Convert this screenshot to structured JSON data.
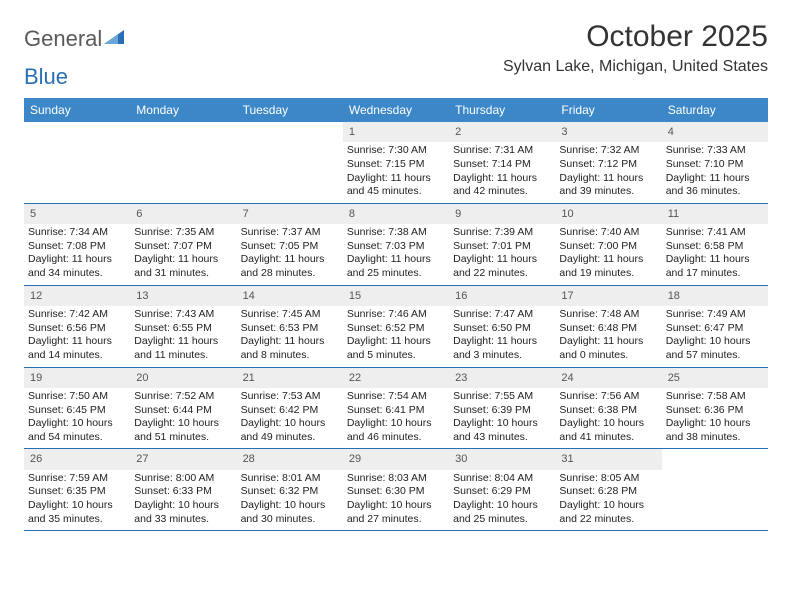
{
  "logo": {
    "general": "General",
    "blue": "Blue"
  },
  "title": "October 2025",
  "location": "Sylvan Lake, Michigan, United States",
  "weekdays": [
    "Sunday",
    "Monday",
    "Tuesday",
    "Wednesday",
    "Thursday",
    "Friday",
    "Saturday"
  ],
  "colors": {
    "header_bg": "#3b87c8",
    "header_text": "#ffffff",
    "row_border": "#2a6fb5",
    "daynum_bg": "#eeeeee",
    "body_text": "#222222",
    "logo_gray": "#5a5a5a",
    "logo_blue": "#2a6fb5"
  },
  "typography": {
    "title_fontsize": 30,
    "location_fontsize": 16,
    "weekday_fontsize": 12,
    "daynum_fontsize": 11,
    "body_fontsize": 10.5
  },
  "weeks": [
    [
      {
        "n": "",
        "sunrise": "",
        "sunset": "",
        "daylight1": "",
        "daylight2": "",
        "empty": true
      },
      {
        "n": "",
        "sunrise": "",
        "sunset": "",
        "daylight1": "",
        "daylight2": "",
        "empty": true
      },
      {
        "n": "",
        "sunrise": "",
        "sunset": "",
        "daylight1": "",
        "daylight2": "",
        "empty": true
      },
      {
        "n": "1",
        "sunrise": "Sunrise: 7:30 AM",
        "sunset": "Sunset: 7:15 PM",
        "daylight1": "Daylight: 11 hours",
        "daylight2": "and 45 minutes."
      },
      {
        "n": "2",
        "sunrise": "Sunrise: 7:31 AM",
        "sunset": "Sunset: 7:14 PM",
        "daylight1": "Daylight: 11 hours",
        "daylight2": "and 42 minutes."
      },
      {
        "n": "3",
        "sunrise": "Sunrise: 7:32 AM",
        "sunset": "Sunset: 7:12 PM",
        "daylight1": "Daylight: 11 hours",
        "daylight2": "and 39 minutes."
      },
      {
        "n": "4",
        "sunrise": "Sunrise: 7:33 AM",
        "sunset": "Sunset: 7:10 PM",
        "daylight1": "Daylight: 11 hours",
        "daylight2": "and 36 minutes."
      }
    ],
    [
      {
        "n": "5",
        "sunrise": "Sunrise: 7:34 AM",
        "sunset": "Sunset: 7:08 PM",
        "daylight1": "Daylight: 11 hours",
        "daylight2": "and 34 minutes."
      },
      {
        "n": "6",
        "sunrise": "Sunrise: 7:35 AM",
        "sunset": "Sunset: 7:07 PM",
        "daylight1": "Daylight: 11 hours",
        "daylight2": "and 31 minutes."
      },
      {
        "n": "7",
        "sunrise": "Sunrise: 7:37 AM",
        "sunset": "Sunset: 7:05 PM",
        "daylight1": "Daylight: 11 hours",
        "daylight2": "and 28 minutes."
      },
      {
        "n": "8",
        "sunrise": "Sunrise: 7:38 AM",
        "sunset": "Sunset: 7:03 PM",
        "daylight1": "Daylight: 11 hours",
        "daylight2": "and 25 minutes."
      },
      {
        "n": "9",
        "sunrise": "Sunrise: 7:39 AM",
        "sunset": "Sunset: 7:01 PM",
        "daylight1": "Daylight: 11 hours",
        "daylight2": "and 22 minutes."
      },
      {
        "n": "10",
        "sunrise": "Sunrise: 7:40 AM",
        "sunset": "Sunset: 7:00 PM",
        "daylight1": "Daylight: 11 hours",
        "daylight2": "and 19 minutes."
      },
      {
        "n": "11",
        "sunrise": "Sunrise: 7:41 AM",
        "sunset": "Sunset: 6:58 PM",
        "daylight1": "Daylight: 11 hours",
        "daylight2": "and 17 minutes."
      }
    ],
    [
      {
        "n": "12",
        "sunrise": "Sunrise: 7:42 AM",
        "sunset": "Sunset: 6:56 PM",
        "daylight1": "Daylight: 11 hours",
        "daylight2": "and 14 minutes."
      },
      {
        "n": "13",
        "sunrise": "Sunrise: 7:43 AM",
        "sunset": "Sunset: 6:55 PM",
        "daylight1": "Daylight: 11 hours",
        "daylight2": "and 11 minutes."
      },
      {
        "n": "14",
        "sunrise": "Sunrise: 7:45 AM",
        "sunset": "Sunset: 6:53 PM",
        "daylight1": "Daylight: 11 hours",
        "daylight2": "and 8 minutes."
      },
      {
        "n": "15",
        "sunrise": "Sunrise: 7:46 AM",
        "sunset": "Sunset: 6:52 PM",
        "daylight1": "Daylight: 11 hours",
        "daylight2": "and 5 minutes."
      },
      {
        "n": "16",
        "sunrise": "Sunrise: 7:47 AM",
        "sunset": "Sunset: 6:50 PM",
        "daylight1": "Daylight: 11 hours",
        "daylight2": "and 3 minutes."
      },
      {
        "n": "17",
        "sunrise": "Sunrise: 7:48 AM",
        "sunset": "Sunset: 6:48 PM",
        "daylight1": "Daylight: 11 hours",
        "daylight2": "and 0 minutes."
      },
      {
        "n": "18",
        "sunrise": "Sunrise: 7:49 AM",
        "sunset": "Sunset: 6:47 PM",
        "daylight1": "Daylight: 10 hours",
        "daylight2": "and 57 minutes."
      }
    ],
    [
      {
        "n": "19",
        "sunrise": "Sunrise: 7:50 AM",
        "sunset": "Sunset: 6:45 PM",
        "daylight1": "Daylight: 10 hours",
        "daylight2": "and 54 minutes."
      },
      {
        "n": "20",
        "sunrise": "Sunrise: 7:52 AM",
        "sunset": "Sunset: 6:44 PM",
        "daylight1": "Daylight: 10 hours",
        "daylight2": "and 51 minutes."
      },
      {
        "n": "21",
        "sunrise": "Sunrise: 7:53 AM",
        "sunset": "Sunset: 6:42 PM",
        "daylight1": "Daylight: 10 hours",
        "daylight2": "and 49 minutes."
      },
      {
        "n": "22",
        "sunrise": "Sunrise: 7:54 AM",
        "sunset": "Sunset: 6:41 PM",
        "daylight1": "Daylight: 10 hours",
        "daylight2": "and 46 minutes."
      },
      {
        "n": "23",
        "sunrise": "Sunrise: 7:55 AM",
        "sunset": "Sunset: 6:39 PM",
        "daylight1": "Daylight: 10 hours",
        "daylight2": "and 43 minutes."
      },
      {
        "n": "24",
        "sunrise": "Sunrise: 7:56 AM",
        "sunset": "Sunset: 6:38 PM",
        "daylight1": "Daylight: 10 hours",
        "daylight2": "and 41 minutes."
      },
      {
        "n": "25",
        "sunrise": "Sunrise: 7:58 AM",
        "sunset": "Sunset: 6:36 PM",
        "daylight1": "Daylight: 10 hours",
        "daylight2": "and 38 minutes."
      }
    ],
    [
      {
        "n": "26",
        "sunrise": "Sunrise: 7:59 AM",
        "sunset": "Sunset: 6:35 PM",
        "daylight1": "Daylight: 10 hours",
        "daylight2": "and 35 minutes."
      },
      {
        "n": "27",
        "sunrise": "Sunrise: 8:00 AM",
        "sunset": "Sunset: 6:33 PM",
        "daylight1": "Daylight: 10 hours",
        "daylight2": "and 33 minutes."
      },
      {
        "n": "28",
        "sunrise": "Sunrise: 8:01 AM",
        "sunset": "Sunset: 6:32 PM",
        "daylight1": "Daylight: 10 hours",
        "daylight2": "and 30 minutes."
      },
      {
        "n": "29",
        "sunrise": "Sunrise: 8:03 AM",
        "sunset": "Sunset: 6:30 PM",
        "daylight1": "Daylight: 10 hours",
        "daylight2": "and 27 minutes."
      },
      {
        "n": "30",
        "sunrise": "Sunrise: 8:04 AM",
        "sunset": "Sunset: 6:29 PM",
        "daylight1": "Daylight: 10 hours",
        "daylight2": "and 25 minutes."
      },
      {
        "n": "31",
        "sunrise": "Sunrise: 8:05 AM",
        "sunset": "Sunset: 6:28 PM",
        "daylight1": "Daylight: 10 hours",
        "daylight2": "and 22 minutes."
      },
      {
        "n": "",
        "sunrise": "",
        "sunset": "",
        "daylight1": "",
        "daylight2": "",
        "empty": true
      }
    ]
  ]
}
